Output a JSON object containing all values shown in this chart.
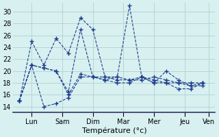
{
  "title": "",
  "xlabel": "Température (°c)",
  "ylabel": "",
  "background_color": "#d8f0f0",
  "grid_color": "#b0d0d0",
  "line_color": "#1a3a8a",
  "tick_labels": [
    "Lun",
    "Sam",
    "Dim",
    "Mar",
    "Mer",
    "Jeu",
    "Ven"
  ],
  "tick_x": [
    1,
    3.5,
    6,
    8.5,
    11,
    13.5,
    15.5
  ],
  "ylim": [
    13,
    31.5
  ],
  "yticks": [
    14,
    16,
    18,
    20,
    22,
    24,
    26,
    28,
    30
  ],
  "series": [
    [
      0,
      15,
      1,
      25,
      2,
      21,
      3,
      25.5,
      4,
      23,
      5,
      29,
      6,
      27,
      7,
      19,
      8,
      19,
      9,
      18.5,
      10,
      18.5,
      11,
      19,
      12,
      18.5,
      13,
      18,
      14,
      17.5,
      15,
      17.5
    ],
    [
      0,
      15,
      1,
      21,
      2,
      20.5,
      3,
      20,
      4,
      16.5,
      5,
      27,
      6,
      19,
      7,
      18.5,
      8,
      19,
      9,
      31,
      10,
      19,
      11,
      18.5,
      12,
      18,
      13,
      18,
      14,
      18,
      15,
      18
    ],
    [
      0,
      15,
      1,
      21,
      2,
      20.5,
      3,
      20,
      4,
      16,
      5,
      19.5,
      6,
      19,
      7,
      19,
      8,
      18.5,
      9,
      18.5,
      10,
      19,
      11,
      18,
      12,
      20,
      13,
      18.5,
      14,
      17.5,
      15,
      18
    ],
    [
      0,
      15,
      1,
      21,
      2,
      14,
      3,
      14.5,
      4,
      15.5,
      5,
      19,
      6,
      19,
      7,
      18.5,
      8,
      18,
      9,
      18,
      10,
      19,
      11,
      18,
      12,
      18,
      13,
      17,
      14,
      17,
      15,
      18
    ]
  ]
}
